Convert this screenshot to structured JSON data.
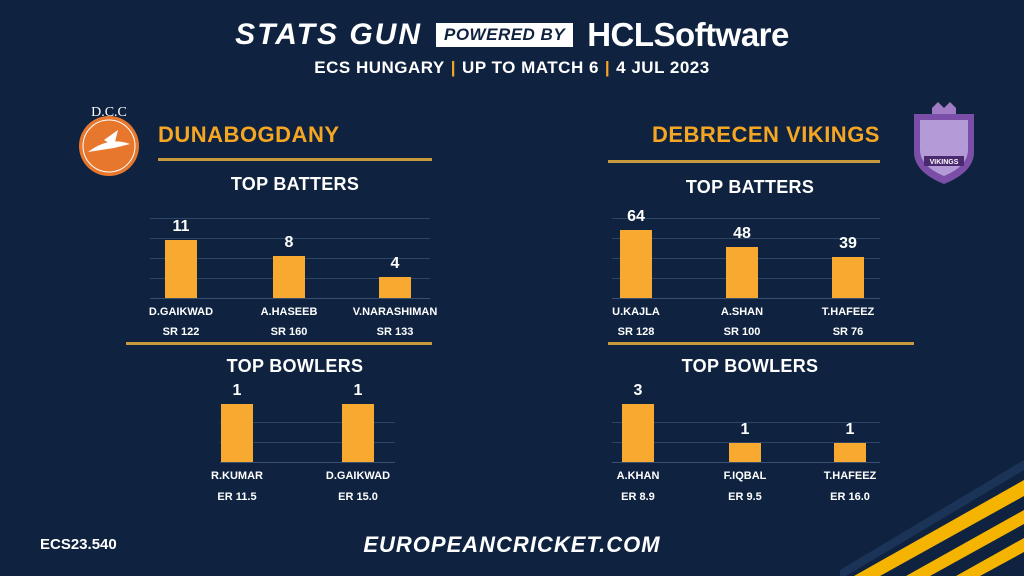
{
  "header": {
    "brand": "STATS GUN",
    "powered_by": "POWERED BY",
    "sponsor": "HCLSoftware",
    "subtitle_parts": [
      "ECS HUNGARY",
      "UP TO MATCH 6",
      "4 JUL 2023"
    ]
  },
  "footer": {
    "code": "ECS23.540",
    "url": "EUROPEANCRICKET.COM"
  },
  "logos": {
    "left_text": "D.C.C",
    "right_text": "VIKINGS"
  },
  "colors": {
    "background": "#0f2340",
    "accent": "#f5a623",
    "bar": "#f7a930"
  },
  "teams": {
    "left": {
      "name": "DUNABOGDANY"
    },
    "right": {
      "name": "DEBRECEN VIKINGS"
    }
  },
  "chart_data": [
    {
      "type": "bar",
      "team": "DUNABOGDANY",
      "title": "TOP BATTERS",
      "categories": [
        "D.GAIKWAD",
        "A.HASEEB",
        "V.NARASHIMAN"
      ],
      "values": [
        11,
        8,
        4
      ],
      "sublabels": [
        "SR 122",
        "SR 160",
        "SR 133"
      ]
    },
    {
      "type": "bar",
      "team": "DUNABOGDANY",
      "title": "TOP BOWLERS",
      "categories": [
        "R.KUMAR",
        "D.GAIKWAD"
      ],
      "values": [
        1,
        1
      ],
      "sublabels": [
        "ER 11.5",
        "ER 15.0"
      ]
    },
    {
      "type": "bar",
      "team": "DEBRECEN VIKINGS",
      "title": "TOP BATTERS",
      "categories": [
        "U.KAJLA",
        "A.SHAN",
        "T.HAFEEZ"
      ],
      "values": [
        64,
        48,
        39
      ],
      "sublabels": [
        "SR 128",
        "SR 100",
        "SR 76"
      ]
    },
    {
      "type": "bar",
      "team": "DEBRECEN VIKINGS",
      "title": "TOP BOWLERS",
      "categories": [
        "A.KHAN",
        "F.IQBAL",
        "T.HAFEEZ"
      ],
      "values": [
        3,
        1,
        1
      ],
      "sublabels": [
        "ER 8.9",
        "ER 9.5",
        "ER 16.0"
      ]
    }
  ]
}
